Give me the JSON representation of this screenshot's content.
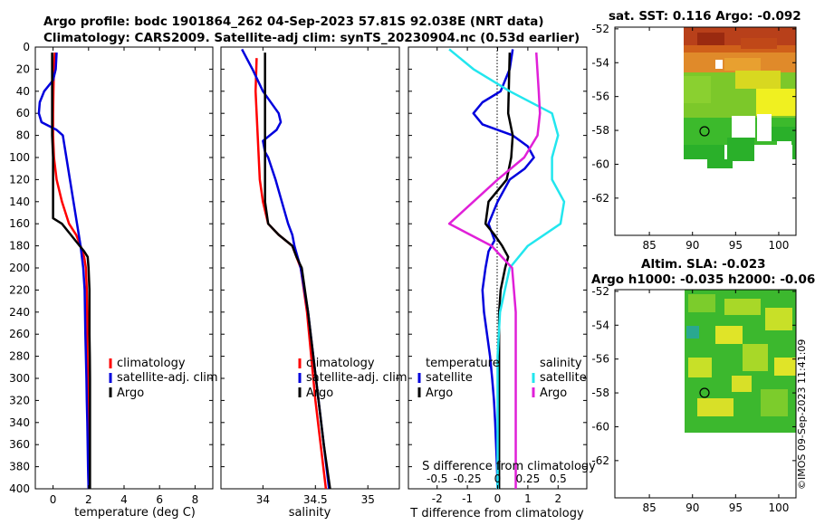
{
  "header": {
    "line1": "Argo profile: bodc 1901864_262 04-Sep-2023 57.81S 92.038E (NRT data)",
    "line2": "Climatology: CARS2009. Satellite-adj clim: synTS_20230904.nc (0.53d earlier)"
  },
  "depth_ticks": [
    "0",
    "20",
    "40",
    "60",
    "80",
    "100",
    "120",
    "140",
    "160",
    "180",
    "200",
    "220",
    "240",
    "260",
    "280",
    "300",
    "320",
    "340",
    "360",
    "380",
    "400"
  ],
  "colors": {
    "climatology": "#ff0000",
    "satellite": "#0000dd",
    "argo": "#000000",
    "sal_satellite": "#22e6ee",
    "sal_argo": "#e020d8"
  },
  "chart_data": [
    {
      "type": "line",
      "title": "",
      "xlabel": "temperature (deg C)",
      "ylabel": "",
      "xlim": [
        -1,
        9
      ],
      "ylim": [
        0,
        400
      ],
      "x_ticks": [
        "0",
        "2",
        "4",
        "6",
        "8"
      ],
      "legend": [
        "climatology",
        "satellite-adj. clim",
        "Argo"
      ],
      "series": [
        {
          "name": "climatology",
          "depth": [
            5,
            20,
            40,
            60,
            80,
            100,
            120,
            140,
            160,
            170,
            180,
            190,
            200,
            220,
            240,
            260,
            280,
            300,
            320,
            340,
            360,
            380,
            400
          ],
          "values": [
            0.1,
            0.05,
            0.02,
            0,
            0,
            0.05,
            0.2,
            0.5,
            0.9,
            1.3,
            1.55,
            1.75,
            1.85,
            1.9,
            1.92,
            1.93,
            1.94,
            1.95,
            1.96,
            1.97,
            1.98,
            1.99,
            2.0
          ]
        },
        {
          "name": "satellite-adj. clim",
          "depth": [
            5,
            20,
            30,
            40,
            50,
            60,
            68,
            75,
            80,
            90,
            100,
            120,
            140,
            160,
            180,
            200,
            220,
            240,
            260,
            280,
            300,
            320,
            340,
            360,
            380,
            400
          ],
          "values": [
            0.2,
            0.15,
            0,
            -0.5,
            -0.75,
            -0.8,
            -0.65,
            0.2,
            0.55,
            0.65,
            0.75,
            0.95,
            1.15,
            1.35,
            1.55,
            1.7,
            1.78,
            1.8,
            1.82,
            1.85,
            1.88,
            1.9,
            1.93,
            1.95,
            1.97,
            2.0
          ]
        },
        {
          "name": "Argo",
          "depth": [
            5,
            40,
            60,
            80,
            100,
            120,
            140,
            155,
            160,
            170,
            180,
            185,
            190,
            200,
            220,
            240,
            260,
            280,
            300,
            320,
            340,
            360,
            380,
            400
          ],
          "values": [
            -0.05,
            -0.05,
            -0.05,
            -0.05,
            0,
            0,
            0,
            0,
            0.5,
            1.0,
            1.5,
            1.75,
            1.95,
            2.0,
            2.05,
            2.05,
            2.05,
            2.07,
            2.08,
            2.08,
            2.08,
            2.08,
            2.08,
            2.08
          ]
        }
      ]
    },
    {
      "type": "line",
      "title": "",
      "xlabel": "salinity",
      "ylabel": "",
      "xlim": [
        33.6,
        35.3
      ],
      "ylim": [
        0,
        400
      ],
      "x_ticks": [
        "34",
        "34.5",
        "35"
      ],
      "legend": [
        "climatology",
        "satellite-adj. clim",
        "Argo"
      ],
      "series": [
        {
          "name": "climatology",
          "depth": [
            10,
            40,
            80,
            120,
            140,
            160,
            170,
            180,
            200,
            240,
            280,
            320,
            360,
            400
          ],
          "values": [
            33.94,
            33.93,
            33.95,
            33.97,
            34.0,
            34.05,
            34.15,
            34.28,
            34.36,
            34.42,
            34.46,
            34.5,
            34.55,
            34.6
          ]
        },
        {
          "name": "satellite-adj. clim",
          "depth": [
            2,
            20,
            40,
            60,
            68,
            75,
            85,
            95,
            100,
            120,
            140,
            160,
            170,
            180,
            200,
            240,
            280,
            320,
            360,
            400
          ],
          "values": [
            33.8,
            33.9,
            34.0,
            34.15,
            34.17,
            34.13,
            34.0,
            34.02,
            34.05,
            34.12,
            34.18,
            34.24,
            34.28,
            34.3,
            34.36,
            34.43,
            34.48,
            34.53,
            34.58,
            34.63
          ]
        },
        {
          "name": "Argo",
          "depth": [
            5,
            40,
            80,
            100,
            120,
            140,
            160,
            170,
            180,
            190,
            200,
            240,
            280,
            320,
            360,
            400
          ],
          "values": [
            34.02,
            34.02,
            34.02,
            34.02,
            34.02,
            34.02,
            34.05,
            34.15,
            34.28,
            34.32,
            34.37,
            34.43,
            34.48,
            34.53,
            34.58,
            34.64
          ]
        }
      ]
    },
    {
      "type": "line",
      "title": "",
      "xlabel": "T difference from climatology",
      "xlabel2": "S difference from climatology",
      "ylabel": "",
      "xlim": [
        -2.95,
        2.95
      ],
      "ylim": [
        0,
        400
      ],
      "x_ticks": [
        "-2",
        "-1",
        "0",
        "1",
        "2"
      ],
      "x2_ticks": [
        "-0.5",
        "-0.25",
        "0",
        "0.25",
        "0.5"
      ],
      "legend_title_left": "temperature",
      "legend_title_right": "salinity",
      "legend": [
        "satellite",
        "Argo",
        "satellite",
        "Argo"
      ],
      "series": [
        {
          "name": "temperature satellite",
          "depth": [
            2,
            20,
            40,
            50,
            60,
            70,
            80,
            90,
            100,
            110,
            120,
            140,
            160,
            175,
            185,
            200,
            220,
            240,
            260,
            280,
            300,
            320,
            340,
            360,
            380,
            400
          ],
          "values": [
            0.5,
            0.4,
            0.1,
            -0.5,
            -0.8,
            -0.5,
            0.5,
            1.0,
            1.2,
            0.9,
            0.4,
            0,
            -0.3,
            -0.1,
            -0.3,
            -0.4,
            -0.5,
            -0.45,
            -0.35,
            -0.25,
            -0.18,
            -0.12,
            -0.08,
            -0.05,
            -0.02,
            0
          ]
        },
        {
          "name": "temperature Argo",
          "depth": [
            5,
            60,
            80,
            100,
            120,
            140,
            160,
            170,
            180,
            190,
            200,
            220,
            240,
            280,
            320,
            360,
            400
          ],
          "values": [
            0.4,
            0.35,
            0.5,
            0.45,
            0.3,
            -0.3,
            -0.4,
            -0.1,
            0.15,
            0.35,
            0.25,
            0.1,
            0.05,
            0.05,
            0.05,
            0.05,
            0.05
          ]
        },
        {
          "name": "salinity satellite",
          "depth": [
            2,
            20,
            40,
            60,
            80,
            100,
            120,
            140,
            160,
            180,
            200,
            240,
            280,
            320,
            360,
            400
          ],
          "values": [
            -0.4,
            -0.2,
            0.1,
            0.45,
            0.5,
            0.45,
            0.45,
            0.55,
            0.52,
            0.25,
            0.1,
            0.02,
            0,
            0,
            0,
            0
          ]
        },
        {
          "name": "salinity Argo",
          "depth": [
            5,
            40,
            60,
            80,
            100,
            120,
            140,
            160,
            180,
            200,
            240,
            280,
            320,
            360,
            400
          ],
          "values": [
            0.32,
            0.34,
            0.35,
            0.33,
            0.22,
            0.0,
            -0.2,
            -0.4,
            -0.05,
            0.12,
            0.15,
            0.15,
            0.15,
            0.15,
            0.15
          ]
        }
      ]
    }
  ],
  "maps": [
    {
      "title": "sat. SST: 0.116 Argo: -0.092",
      "x_ticks": [
        "85",
        "90",
        "95",
        "100"
      ],
      "y_ticks": [
        "-52",
        "-54",
        "-56",
        "-58",
        "-60",
        "-62"
      ]
    },
    {
      "title_line1": "Altim. SLA: -0.023",
      "title_line2": "Argo h1000: -0.035 h2000: -0.062",
      "x_ticks": [
        "85",
        "90",
        "95",
        "100"
      ],
      "y_ticks": [
        "-52",
        "-54",
        "-56",
        "-58",
        "-60",
        "-62"
      ]
    }
  ],
  "footer": "©IMOS 09-Sep-2023 11:41:09"
}
